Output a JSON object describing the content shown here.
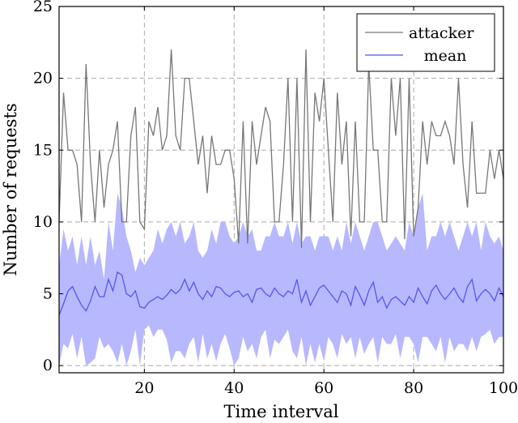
{
  "chart_data": {
    "type": "line",
    "xlabel": "Time interval",
    "ylabel": "Number of requests",
    "xlim": [
      1,
      100
    ],
    "ylim": [
      -0.5,
      25
    ],
    "xticks": [
      20,
      40,
      60,
      80,
      100
    ],
    "yticks": [
      0,
      5,
      10,
      15,
      20,
      25
    ],
    "grid": true,
    "legend_position": "top-right",
    "legend": [
      "attacker",
      "mean"
    ],
    "colors": {
      "attacker": "#777777",
      "mean": "#5555ee",
      "band": "#b8b8ff"
    },
    "x": [
      1,
      2,
      3,
      4,
      5,
      6,
      7,
      8,
      9,
      10,
      11,
      12,
      13,
      14,
      15,
      16,
      17,
      18,
      19,
      20,
      21,
      22,
      23,
      24,
      25,
      26,
      27,
      28,
      29,
      30,
      31,
      32,
      33,
      34,
      35,
      36,
      37,
      38,
      39,
      40,
      41,
      42,
      43,
      44,
      45,
      46,
      47,
      48,
      49,
      50,
      51,
      52,
      53,
      54,
      55,
      56,
      57,
      58,
      59,
      60,
      61,
      62,
      63,
      64,
      65,
      66,
      67,
      68,
      69,
      70,
      71,
      72,
      73,
      74,
      75,
      76,
      77,
      78,
      79,
      80,
      81,
      82,
      83,
      84,
      85,
      86,
      87,
      88,
      89,
      90,
      91,
      92,
      93,
      94,
      95,
      96,
      97,
      98,
      99,
      100
    ],
    "series": [
      {
        "name": "attacker",
        "values": [
          10,
          19,
          15,
          15,
          14,
          10,
          21,
          14,
          10,
          15,
          11,
          14,
          15,
          17,
          10,
          10,
          16,
          18,
          10,
          9.5,
          17,
          16,
          18,
          15,
          16,
          22,
          16,
          15,
          20,
          20,
          17,
          14,
          16,
          12,
          16,
          14,
          14,
          15,
          15,
          13,
          8.5,
          17,
          8.5,
          17,
          14,
          16,
          18,
          17,
          10,
          10,
          14,
          20,
          10,
          20,
          8.2,
          22,
          10,
          19,
          17,
          20,
          15,
          10,
          19,
          14,
          17,
          9,
          17,
          10,
          10,
          21,
          15,
          15,
          10,
          10,
          20,
          16,
          20,
          8.8,
          20,
          9,
          11,
          17,
          14,
          17,
          16,
          16,
          17,
          16,
          14,
          20,
          14,
          11,
          17,
          12,
          12,
          12,
          15,
          13,
          15,
          13
        ]
      },
      {
        "name": "mean",
        "values": [
          3.5,
          4.3,
          5.2,
          5.5,
          4.8,
          4.2,
          3.8,
          4.5,
          5.5,
          4.8,
          4.8,
          6.0,
          5.2,
          6.5,
          6.3,
          5.0,
          4.8,
          5.2,
          4.1,
          4.0,
          4.4,
          4.6,
          4.8,
          4.6,
          4.9,
          5.3,
          5.0,
          5.3,
          6.0,
          5.2,
          5.8,
          5.0,
          4.6,
          5.2,
          4.8,
          5.5,
          5.4,
          5.0,
          4.8,
          5.1,
          5.2,
          4.8,
          5.0,
          4.4,
          5.3,
          5.4,
          5.0,
          4.8,
          5.4,
          5.0,
          4.8,
          5.2,
          5.0,
          6.0,
          4.4,
          5.2,
          4.2,
          4.8,
          5.4,
          5.6,
          5.2,
          4.8,
          4.4,
          5.2,
          5.0,
          4.2,
          5.5,
          4.9,
          4.2,
          5.2,
          5.8,
          4.4,
          4.8,
          4.0,
          4.6,
          4.8,
          4.5,
          4.2,
          4.8,
          4.4,
          5.4,
          4.8,
          4.3,
          5.2,
          5.6,
          5.0,
          4.6,
          5.0,
          5.4,
          4.8,
          4.4,
          5.5,
          6.0,
          4.5,
          5.0,
          5.3,
          5.0,
          4.5,
          5.4,
          4.8
        ],
        "band_lower": [
          0,
          1.5,
          1.2,
          2.2,
          0.5,
          2,
          0,
          0.2,
          0.5,
          2,
          1.2,
          1.5,
          1.0,
          0.2,
          1.5,
          0,
          1,
          2.5,
          0,
          2.5,
          2.8,
          2,
          2.5,
          2.5,
          1.8,
          0.2,
          1,
          1,
          0.5,
          1.5,
          2,
          0.2,
          2.2,
          0.5,
          1.5,
          0.3,
          1.5,
          2.2,
          1.2,
          0,
          0.5,
          2,
          1,
          1.5,
          0.5,
          2,
          2.5,
          0.5,
          1.8,
          1.5,
          2,
          2.5,
          1,
          0.5,
          2,
          0,
          1.5,
          0.2,
          1.5,
          0.3,
          2,
          1.5,
          0.5,
          2.2,
          1.5,
          2,
          0.5,
          2,
          0.8,
          1.5,
          2,
          0.2,
          2,
          1.5,
          1.5,
          2.2,
          0.5,
          2,
          2,
          1.5,
          0.2,
          2,
          2,
          1.5,
          1,
          2,
          0.2,
          2,
          1,
          1.5,
          1.5,
          1,
          2,
          1,
          2,
          2.2,
          2.5,
          1.5,
          2,
          2
        ],
        "band_upper": [
          7,
          9.5,
          8,
          9,
          7,
          9,
          7,
          9,
          7,
          8,
          6,
          10,
          8,
          12,
          11,
          9,
          8,
          6.5,
          7.5,
          7,
          7.5,
          8,
          9.5,
          8.5,
          9.5,
          10,
          9,
          10,
          8.5,
          9,
          10,
          8,
          7.5,
          8,
          9.5,
          8.5,
          10,
          10,
          9,
          8.5,
          9,
          10,
          9,
          9.5,
          8,
          8,
          9,
          9,
          10,
          9,
          9,
          10,
          8.5,
          10,
          8.5,
          9,
          9,
          8,
          9,
          9,
          9,
          8,
          9,
          8,
          10,
          8.5,
          10,
          9,
          8,
          9,
          10,
          10,
          9,
          8,
          8.5,
          9,
          8.5,
          8,
          10,
          9,
          11,
          12,
          8,
          9,
          9,
          10,
          9,
          10,
          9,
          8,
          9,
          10,
          9,
          10,
          8,
          10,
          9,
          8.5,
          9,
          8
        ]
      }
    ]
  }
}
